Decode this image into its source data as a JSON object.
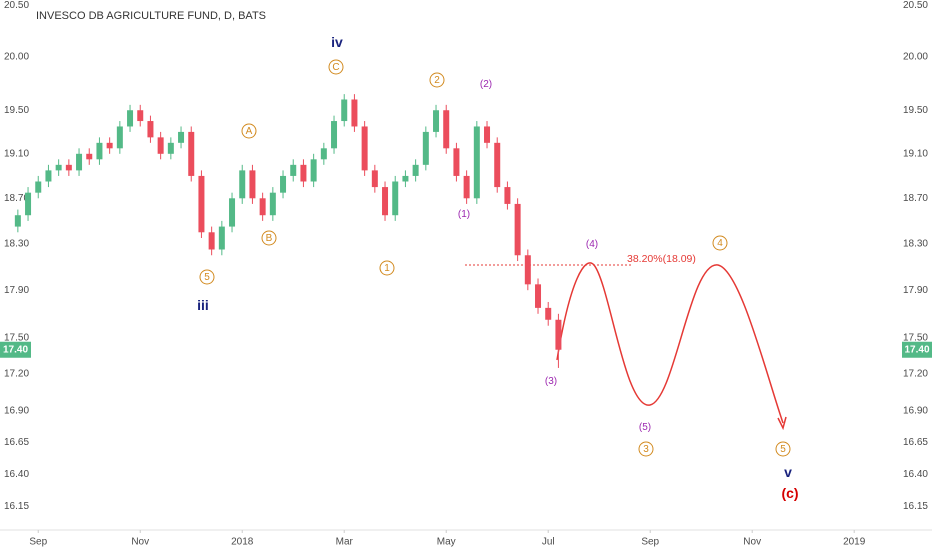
{
  "chart_data": {
    "type": "candlestick",
    "title": "INVESCO DB AGRICULTURE FUND, D, BATS",
    "log_scale": true,
    "grid": false,
    "up_color": "#53b987",
    "down_color": "#eb4d5c",
    "ylim": [
      15.97,
      20.55
    ],
    "yticks": [
      {
        "value": 20.5,
        "label": "20.50"
      },
      {
        "value": 20.0,
        "label": "20.00"
      },
      {
        "value": 19.5,
        "label": "19.50"
      },
      {
        "value": 19.1,
        "label": "19.10"
      },
      {
        "value": 18.7,
        "label": "18.70"
      },
      {
        "value": 18.3,
        "label": "18.30"
      },
      {
        "value": 17.9,
        "label": "17.90"
      },
      {
        "value": 17.5,
        "label": "17.50"
      },
      {
        "value": 17.2,
        "label": "17.20"
      },
      {
        "value": 16.9,
        "label": "16.90"
      },
      {
        "value": 16.65,
        "label": "16.65"
      },
      {
        "value": 16.4,
        "label": "16.40"
      },
      {
        "value": 16.15,
        "label": "16.15"
      }
    ],
    "xlim": [
      8.25,
      25.8
    ],
    "xticks": [
      {
        "value": 9,
        "label": "Sep"
      },
      {
        "value": 11,
        "label": "Nov"
      },
      {
        "value": 13,
        "label": "2018"
      },
      {
        "value": 15,
        "label": "Mar"
      },
      {
        "value": 17,
        "label": "May"
      },
      {
        "value": 19,
        "label": "Jul"
      },
      {
        "value": 21,
        "label": "Sep"
      },
      {
        "value": 23,
        "label": "Nov"
      },
      {
        "value": 25,
        "label": "2019"
      }
    ],
    "last_price": {
      "value": 17.4,
      "label": "17.40"
    },
    "x": [
      8.6,
      8.8,
      9.0,
      9.2,
      9.4,
      9.6,
      9.8,
      10.0,
      10.2,
      10.4,
      10.6,
      10.8,
      11.0,
      11.2,
      11.4,
      11.6,
      11.8,
      12.0,
      12.2,
      12.4,
      12.6,
      12.8,
      13.0,
      13.2,
      13.4,
      13.6,
      13.8,
      14.0,
      14.2,
      14.4,
      14.6,
      14.8,
      15.0,
      15.2,
      15.4,
      15.6,
      15.8,
      16.0,
      16.2,
      16.4,
      16.6,
      16.8,
      17.0,
      17.2,
      17.4,
      17.6,
      17.8,
      18.0,
      18.2,
      18.4,
      18.6,
      18.8,
      19.0,
      19.2
    ],
    "open": [
      18.45,
      18.55,
      18.75,
      18.85,
      18.95,
      19.0,
      18.95,
      19.1,
      19.05,
      19.2,
      19.15,
      19.35,
      19.5,
      19.4,
      19.25,
      19.1,
      19.2,
      19.3,
      18.9,
      18.4,
      18.25,
      18.45,
      18.7,
      18.95,
      18.7,
      18.55,
      18.75,
      18.9,
      19.0,
      18.85,
      19.05,
      19.15,
      19.4,
      19.6,
      19.35,
      18.95,
      18.8,
      18.55,
      18.85,
      18.9,
      19.0,
      19.3,
      19.5,
      19.15,
      18.9,
      18.7,
      19.35,
      19.2,
      18.8,
      18.65,
      18.2,
      17.95,
      17.75,
      17.65
    ],
    "high": [
      18.6,
      18.8,
      18.9,
      19.0,
      19.05,
      19.05,
      19.15,
      19.15,
      19.25,
      19.25,
      19.4,
      19.55,
      19.55,
      19.45,
      19.3,
      19.25,
      19.35,
      19.35,
      18.95,
      18.45,
      18.5,
      18.75,
      19.0,
      19.0,
      18.75,
      18.8,
      18.95,
      19.05,
      19.05,
      19.1,
      19.2,
      19.45,
      19.65,
      19.65,
      19.4,
      19.0,
      18.85,
      18.9,
      18.95,
      19.05,
      19.35,
      19.55,
      19.55,
      19.2,
      18.95,
      19.4,
      19.4,
      19.25,
      18.85,
      18.7,
      18.25,
      18.0,
      17.8,
      17.7
    ],
    "low": [
      18.4,
      18.5,
      18.7,
      18.8,
      18.9,
      18.9,
      18.9,
      19.0,
      19.0,
      19.1,
      19.1,
      19.3,
      19.35,
      19.2,
      19.05,
      19.05,
      19.15,
      18.85,
      18.35,
      18.2,
      18.2,
      18.4,
      18.65,
      18.65,
      18.5,
      18.5,
      18.7,
      18.85,
      18.8,
      18.8,
      19.0,
      19.1,
      19.35,
      19.3,
      18.9,
      18.75,
      18.5,
      18.5,
      18.8,
      18.85,
      18.95,
      19.25,
      19.1,
      18.85,
      18.65,
      18.65,
      19.15,
      18.75,
      18.6,
      18.15,
      17.9,
      17.7,
      17.6,
      17.25
    ],
    "close": [
      18.55,
      18.75,
      18.85,
      18.95,
      19.0,
      18.95,
      19.1,
      19.05,
      19.2,
      19.15,
      19.35,
      19.5,
      19.4,
      19.25,
      19.1,
      19.2,
      19.3,
      18.9,
      18.4,
      18.25,
      18.45,
      18.7,
      18.95,
      18.7,
      18.55,
      18.75,
      18.9,
      19.0,
      18.85,
      19.05,
      19.15,
      19.4,
      19.6,
      19.35,
      18.95,
      18.8,
      18.55,
      18.85,
      18.9,
      19.0,
      19.3,
      19.5,
      19.15,
      18.9,
      18.7,
      19.35,
      19.2,
      18.8,
      18.65,
      18.2,
      17.95,
      17.75,
      17.65,
      17.4
    ],
    "fib_label": "38.20%(18.09)",
    "annotations": [
      "A",
      "B",
      "5",
      "iii",
      "C",
      "iv",
      "1",
      "2",
      "(2)",
      "(1)",
      "(4)",
      "4",
      "(3)",
      "(5)",
      "3",
      "5",
      "v",
      "(c)"
    ]
  }
}
